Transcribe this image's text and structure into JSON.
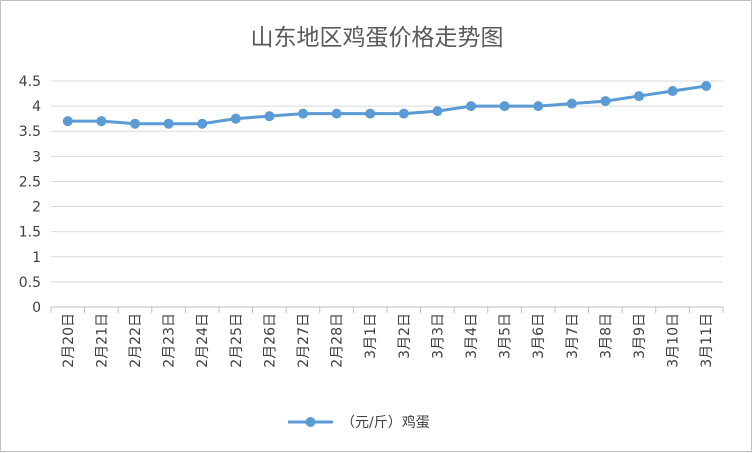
{
  "chart_data": {
    "type": "line",
    "title": "山东地区鸡蛋价格走势图",
    "categories": [
      "2月20日",
      "2月21日",
      "2月22日",
      "2月23日",
      "2月24日",
      "2月25日",
      "2月26日",
      "2月27日",
      "2月28日",
      "3月1日",
      "3月2日",
      "3月3日",
      "3月4日",
      "3月5日",
      "3月6日",
      "3月7日",
      "3月8日",
      "3月9日",
      "3月10日",
      "3月11日"
    ],
    "series": [
      {
        "name": "（元/斤）鸡蛋",
        "values": [
          3.7,
          3.7,
          3.65,
          3.65,
          3.65,
          3.75,
          3.8,
          3.85,
          3.85,
          3.85,
          3.85,
          3.9,
          4.0,
          4.0,
          4.0,
          4.05,
          4.1,
          4.2,
          4.3,
          4.4
        ],
        "color": "#5b9bd5"
      }
    ],
    "ylim": [
      0,
      4.5
    ],
    "yticks": [
      "0",
      "0.5",
      "1",
      "1.5",
      "2",
      "2.5",
      "3",
      "3.5",
      "4",
      "4.5"
    ],
    "grid": true,
    "legend": "bottom"
  }
}
